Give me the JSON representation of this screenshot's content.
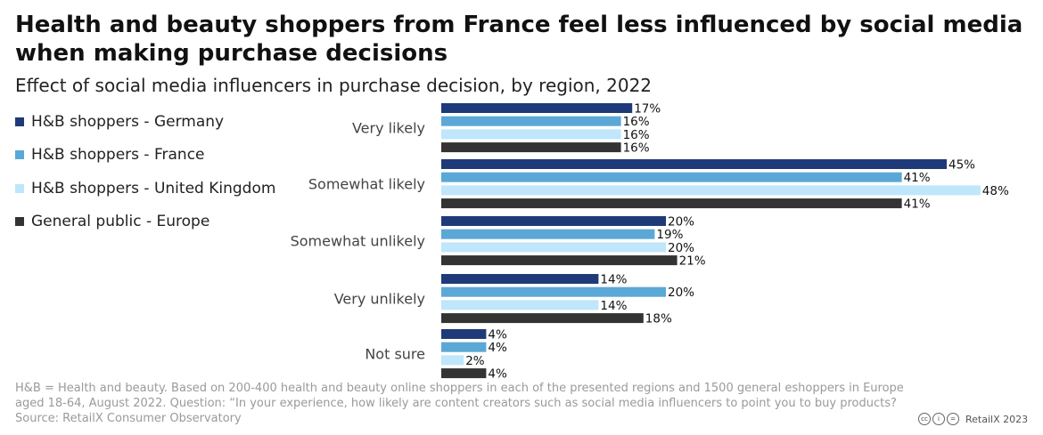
{
  "title": "Health and beauty shoppers from France feel less influenced by social media when making purchase decisions",
  "subtitle": "Effect of social media influencers in purchase decision, by region, 2022",
  "chart_data": {
    "type": "bar",
    "orientation": "horizontal",
    "title": "Health and beauty shoppers from France feel less influenced by social media when making purchase decisions",
    "subtitle": "Effect of social media influencers in purchase decision, by region, 2022",
    "categories": [
      "Very likely",
      "Somewhat likely",
      "Somewhat unlikely",
      "Very unlikely",
      "Not sure"
    ],
    "series": [
      {
        "name": "H&B shoppers - Germany",
        "color": "#1f3a78",
        "values": [
          17,
          45,
          20,
          14,
          4
        ]
      },
      {
        "name": "H&B shoppers - France",
        "color": "#5ba8d6",
        "values": [
          16,
          41,
          19,
          20,
          4
        ]
      },
      {
        "name": "H&B shoppers - United Kingdom",
        "color": "#bfe6fb",
        "values": [
          16,
          48,
          20,
          14,
          2
        ]
      },
      {
        "name": "General public - Europe",
        "color": "#333333",
        "values": [
          16,
          41,
          21,
          18,
          4
        ]
      }
    ],
    "value_suffix": "%",
    "xlim": [
      0,
      48
    ],
    "legend_position": "top-left",
    "grid": false
  },
  "footnote": {
    "line1": "H&B = Health and beauty. Based on 200-400 health and beauty online shoppers in each of the presented regions and 1500 general eshoppers in Europe",
    "line2": "aged 18-64, August 2022. Question: “In your experience, how likely are content creators such as social media influencers to point you to buy products?",
    "line3": "Source: RetailX Consumer Observatory"
  },
  "license_icons": [
    "cc-icon",
    "by-icon",
    "nd-icon"
  ],
  "copyright": "RetailX 2023"
}
